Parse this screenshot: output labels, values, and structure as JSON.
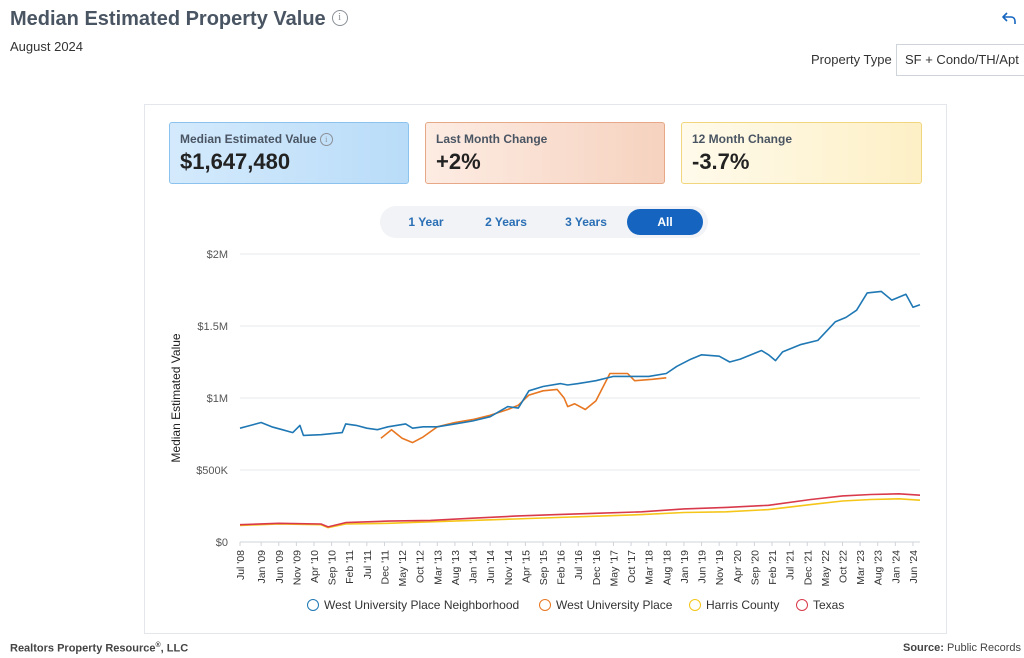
{
  "header": {
    "title": "Median Estimated Property Value",
    "subtitle": "August 2024",
    "property_type_label": "Property Type",
    "property_type_value": "SF + Condo/TH/Apt"
  },
  "cards": [
    {
      "label": "Median Estimated Value",
      "value": "$1,647,480",
      "color": "#b9dcf8"
    },
    {
      "label": "Last Month Change",
      "value": "+2%",
      "color": "#f6d2bf"
    },
    {
      "label": "12 Month Change",
      "value": "-3.7%",
      "color": "#fdf0c6"
    }
  ],
  "tabs": [
    {
      "label": "1 Year",
      "active": false
    },
    {
      "label": "2 Years",
      "active": false
    },
    {
      "label": "3 Years",
      "active": false
    },
    {
      "label": "All",
      "active": true
    }
  ],
  "footer": {
    "company": "Realtors Property Resource",
    "company_suffix": ", LLC",
    "source_label": "Source:",
    "source_value": "Public Records"
  },
  "chart_data": {
    "type": "line",
    "ylabel": "Median Estimated Value",
    "ylim": [
      0,
      2000000
    ],
    "y_ticks": [
      0,
      500000,
      1000000,
      1500000,
      2000000
    ],
    "y_tick_labels": [
      "$0",
      "$500K",
      "$1M",
      "$1.5M",
      "$2M"
    ],
    "x_range": [
      "2008-07",
      "2024-08"
    ],
    "x_ticks": [
      "2008-07",
      "2009-01",
      "2009-06",
      "2009-11",
      "2010-04",
      "2010-09",
      "2011-02",
      "2011-07",
      "2011-12",
      "2012-05",
      "2012-10",
      "2013-03",
      "2013-08",
      "2014-01",
      "2014-06",
      "2014-11",
      "2015-04",
      "2015-09",
      "2016-02",
      "2016-07",
      "2016-12",
      "2017-05",
      "2017-10",
      "2018-03",
      "2018-08",
      "2019-01",
      "2019-06",
      "2019-11",
      "2020-04",
      "2020-09",
      "2021-02",
      "2021-07",
      "2021-12",
      "2022-05",
      "2022-10",
      "2023-03",
      "2023-08",
      "2024-01",
      "2024-06"
    ],
    "x_tick_labels": [
      "Jul '08",
      "Jan '09",
      "Jun '09",
      "Nov '09",
      "Apr '10",
      "Sep '10",
      "Feb '11",
      "Jul '11",
      "Dec '11",
      "May '12",
      "Oct '12",
      "Mar '13",
      "Aug '13",
      "Jan '14",
      "Jun '14",
      "Nov '14",
      "Apr '15",
      "Sep '15",
      "Feb '16",
      "Jul '16",
      "Dec '16",
      "May '17",
      "Oct '17",
      "Mar '18",
      "Aug '18",
      "Jan '19",
      "Jun '19",
      "Nov '19",
      "Apr '20",
      "Sep '20",
      "Feb '21",
      "Jul '21",
      "Dec '21",
      "May '22",
      "Oct '22",
      "Mar '23",
      "Aug '23",
      "Jan '24",
      "Jun '24"
    ],
    "grid": true,
    "legend_position": "bottom",
    "series": [
      {
        "name": "West University Place Neighborhood",
        "color": "#1f78b4",
        "points": [
          [
            "2008-07",
            790000
          ],
          [
            "2008-10",
            810000
          ],
          [
            "2009-01",
            830000
          ],
          [
            "2009-04",
            800000
          ],
          [
            "2009-07",
            780000
          ],
          [
            "2009-10",
            760000
          ],
          [
            "2009-12",
            810000
          ],
          [
            "2010-01",
            740000
          ],
          [
            "2010-06",
            745000
          ],
          [
            "2010-12",
            760000
          ],
          [
            "2011-01",
            820000
          ],
          [
            "2011-04",
            810000
          ],
          [
            "2011-07",
            790000
          ],
          [
            "2011-10",
            780000
          ],
          [
            "2012-01",
            800000
          ],
          [
            "2012-06",
            820000
          ],
          [
            "2012-08",
            790000
          ],
          [
            "2012-11",
            800000
          ],
          [
            "2013-03",
            800000
          ],
          [
            "2013-08",
            820000
          ],
          [
            "2014-01",
            840000
          ],
          [
            "2014-06",
            870000
          ],
          [
            "2014-11",
            940000
          ],
          [
            "2015-02",
            930000
          ],
          [
            "2015-05",
            1050000
          ],
          [
            "2015-09",
            1080000
          ],
          [
            "2016-02",
            1100000
          ],
          [
            "2016-04",
            1090000
          ],
          [
            "2016-07",
            1100000
          ],
          [
            "2016-12",
            1120000
          ],
          [
            "2017-05",
            1150000
          ],
          [
            "2017-10",
            1150000
          ],
          [
            "2018-03",
            1150000
          ],
          [
            "2018-08",
            1170000
          ],
          [
            "2018-11",
            1220000
          ],
          [
            "2019-03",
            1270000
          ],
          [
            "2019-06",
            1300000
          ],
          [
            "2019-11",
            1290000
          ],
          [
            "2020-02",
            1250000
          ],
          [
            "2020-05",
            1270000
          ],
          [
            "2020-09",
            1310000
          ],
          [
            "2020-11",
            1330000
          ],
          [
            "2021-01",
            1300000
          ],
          [
            "2021-03",
            1260000
          ],
          [
            "2021-05",
            1320000
          ],
          [
            "2021-10",
            1370000
          ],
          [
            "2022-03",
            1400000
          ],
          [
            "2022-08",
            1530000
          ],
          [
            "2022-11",
            1560000
          ],
          [
            "2023-02",
            1610000
          ],
          [
            "2023-05",
            1730000
          ],
          [
            "2023-09",
            1740000
          ],
          [
            "2023-12",
            1680000
          ],
          [
            "2024-04",
            1720000
          ],
          [
            "2024-06",
            1630000
          ],
          [
            "2024-08",
            1647480
          ]
        ]
      },
      {
        "name": "West University Place",
        "color": "#e87722",
        "points": [
          [
            "2011-11",
            720000
          ],
          [
            "2012-02",
            780000
          ],
          [
            "2012-05",
            720000
          ],
          [
            "2012-08",
            690000
          ],
          [
            "2012-11",
            730000
          ],
          [
            "2013-03",
            800000
          ],
          [
            "2013-08",
            830000
          ],
          [
            "2014-01",
            850000
          ],
          [
            "2014-06",
            880000
          ],
          [
            "2014-11",
            920000
          ],
          [
            "2015-02",
            950000
          ],
          [
            "2015-05",
            1020000
          ],
          [
            "2015-09",
            1050000
          ],
          [
            "2016-01",
            1060000
          ],
          [
            "2016-03",
            1000000
          ],
          [
            "2016-04",
            940000
          ],
          [
            "2016-06",
            960000
          ],
          [
            "2016-09",
            920000
          ],
          [
            "2016-12",
            980000
          ],
          [
            "2017-04",
            1170000
          ],
          [
            "2017-09",
            1170000
          ],
          [
            "2017-11",
            1120000
          ],
          [
            "2018-04",
            1130000
          ],
          [
            "2018-08",
            1140000
          ]
        ]
      },
      {
        "name": "Harris County",
        "color": "#f5c518",
        "points": [
          [
            "2008-07",
            115000
          ],
          [
            "2009-06",
            125000
          ],
          [
            "2010-06",
            120000
          ],
          [
            "2010-08",
            100000
          ],
          [
            "2011-01",
            125000
          ],
          [
            "2012-01",
            130000
          ],
          [
            "2013-01",
            140000
          ],
          [
            "2014-01",
            150000
          ],
          [
            "2015-01",
            160000
          ],
          [
            "2016-01",
            170000
          ],
          [
            "2017-01",
            180000
          ],
          [
            "2018-01",
            190000
          ],
          [
            "2019-01",
            205000
          ],
          [
            "2020-01",
            210000
          ],
          [
            "2021-01",
            225000
          ],
          [
            "2022-01",
            260000
          ],
          [
            "2022-10",
            285000
          ],
          [
            "2023-06",
            295000
          ],
          [
            "2024-02",
            300000
          ],
          [
            "2024-08",
            290000
          ]
        ]
      },
      {
        "name": "Texas",
        "color": "#d93a4b",
        "points": [
          [
            "2008-07",
            120000
          ],
          [
            "2009-06",
            130000
          ],
          [
            "2010-06",
            125000
          ],
          [
            "2010-08",
            105000
          ],
          [
            "2011-01",
            135000
          ],
          [
            "2012-01",
            145000
          ],
          [
            "2013-01",
            150000
          ],
          [
            "2014-01",
            165000
          ],
          [
            "2015-01",
            180000
          ],
          [
            "2016-01",
            190000
          ],
          [
            "2017-01",
            200000
          ],
          [
            "2018-01",
            210000
          ],
          [
            "2019-01",
            230000
          ],
          [
            "2020-01",
            240000
          ],
          [
            "2021-01",
            255000
          ],
          [
            "2022-01",
            295000
          ],
          [
            "2022-10",
            320000
          ],
          [
            "2023-06",
            330000
          ],
          [
            "2024-02",
            335000
          ],
          [
            "2024-08",
            325000
          ]
        ]
      }
    ]
  }
}
